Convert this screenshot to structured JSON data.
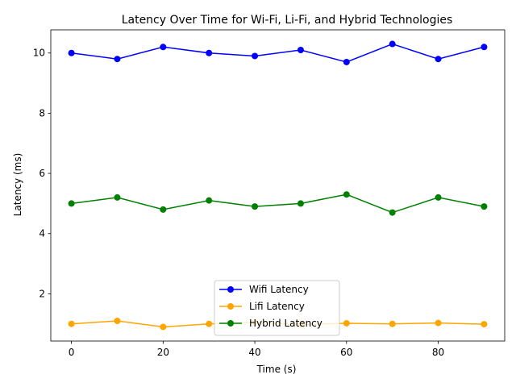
{
  "chart_data": {
    "type": "line",
    "title": "Latency Over Time for Wi-Fi, Li-Fi, and Hybrid Technologies",
    "xlabel": "Time (s)",
    "ylabel": "Latency (ms)",
    "x": [
      0,
      10,
      20,
      30,
      40,
      50,
      60,
      70,
      80,
      90
    ],
    "xlim": [
      -4.5,
      94.5
    ],
    "ylim": [
      0.43,
      10.77
    ],
    "xticks": [
      0,
      20,
      40,
      60,
      80
    ],
    "yticks": [
      2,
      4,
      6,
      8,
      10
    ],
    "grid": false,
    "legend_position": "bottom-center",
    "series": [
      {
        "name": "Wifi Latency",
        "color": "#0000ff",
        "marker": "circle",
        "values": [
          10.0,
          9.8,
          10.2,
          10.0,
          9.9,
          10.1,
          9.7,
          10.3,
          9.8,
          10.2
        ]
      },
      {
        "name": "Lifi Latency",
        "color": "#ffa500",
        "marker": "circle",
        "values": [
          1.0,
          1.1,
          0.9,
          1.0,
          1.05,
          0.98,
          1.02,
          1.0,
          1.03,
          0.99
        ]
      },
      {
        "name": "Hybrid Latency",
        "color": "#008000",
        "marker": "circle",
        "values": [
          5.0,
          5.2,
          4.8,
          5.1,
          4.9,
          5.0,
          5.3,
          4.7,
          5.2,
          4.9
        ]
      }
    ]
  }
}
